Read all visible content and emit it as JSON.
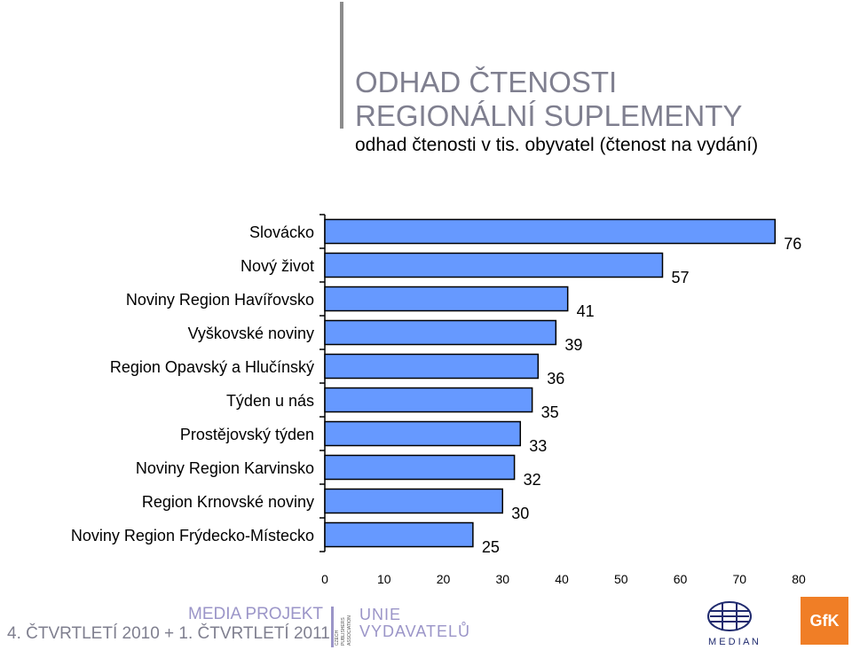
{
  "header": {
    "title_line1": "ODHAD ČTENOSTI",
    "title_line2": "REGIONÁLNÍ SUPLEMENTY",
    "subtitle": "odhad čtenosti v tis. obyvatel (čtenost na vydání)"
  },
  "chart_data": {
    "type": "bar",
    "orientation": "horizontal",
    "categories": [
      "Slovácko",
      "Nový život",
      "Noviny Region Havířovsko",
      "Vyškovské noviny",
      "Region Opavský a Hlučínský",
      "Týden u nás",
      "Prostějovský týden",
      "Noviny Region Karvinsko",
      "Region Krnovské noviny",
      "Noviny Region Frýdecko-Místecko"
    ],
    "values": [
      76,
      57,
      41,
      39,
      36,
      35,
      33,
      32,
      30,
      25
    ],
    "data_labels": [
      "76",
      "57",
      "41",
      "39",
      "36",
      "35",
      "33",
      "32",
      "30",
      "25"
    ],
    "xlim": [
      0,
      80
    ],
    "xticks": [
      "0",
      "10",
      "20",
      "30",
      "40",
      "50",
      "60",
      "70",
      "80"
    ],
    "bar_color": "#6699ff",
    "grid": false,
    "legend": "none"
  },
  "footer": {
    "period": "4. ČTVRTLETÍ 2010 + 1. ČTVRTLETÍ 2011",
    "media_projekt": "MEDIA PROJEKT",
    "unie_line1": "UNIE",
    "unie_line2": "VYDAVATELŮ",
    "median": "M E D I A N",
    "gfk": "GfK",
    "cpa": "CZECH PUBLISHERS ASSOCIATION"
  }
}
